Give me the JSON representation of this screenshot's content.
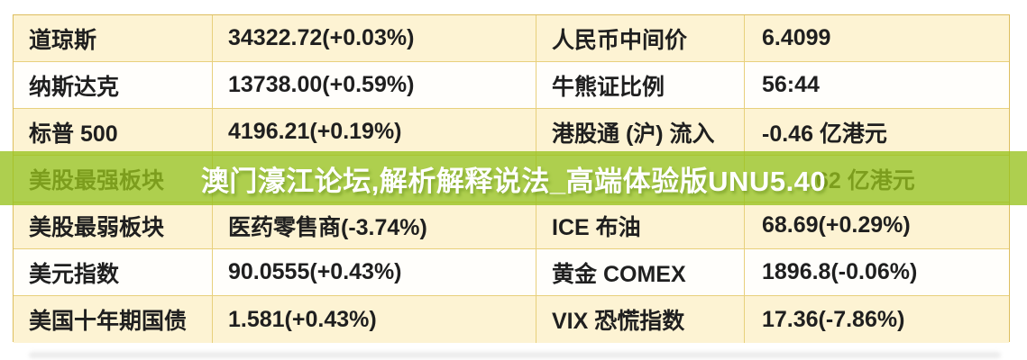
{
  "banner": {
    "text": "澳门濠江论坛,解析解释说法_高端体验版UNU5.40",
    "background_color": "#97c21e",
    "text_color": "#ffffff"
  },
  "table": {
    "row_colors": {
      "odd": "#fdf3d3",
      "even": "#fffefb",
      "border": "#e8d07c"
    },
    "rows": [
      {
        "label_left": "道琼斯",
        "value_left": "34322.72(+0.03%)",
        "label_right": "人民币中间价",
        "value_right": "6.4099"
      },
      {
        "label_left": "纳斯达克",
        "value_left": "13738.00(+0.59%)",
        "label_right": "牛熊证比例",
        "value_right": "56:44"
      },
      {
        "label_left": "标普 500",
        "value_left": "4196.21(+0.19%)",
        "label_right": "港股通 (沪) 流入",
        "value_right": "-0.46 亿港元"
      },
      {
        "label_left": "美股最强板块",
        "value_left": "",
        "label_right": "",
        "value_right": ".62 亿港元",
        "obscured_by_banner": true
      },
      {
        "label_left": "美股最弱板块",
        "value_left": "医药零售商(-3.74%)",
        "label_right": "ICE 布油",
        "value_right": "68.69(+0.29%)"
      },
      {
        "label_left": "美元指数",
        "value_left": "90.0555(+0.43%)",
        "label_right": "黄金 COMEX",
        "value_right": "1896.8(-0.06%)"
      },
      {
        "label_left": "美国十年期国债",
        "value_left": "1.581(+0.43%)",
        "label_right": "VIX 恐慌指数",
        "value_right": "17.36(-7.86%)"
      }
    ]
  }
}
